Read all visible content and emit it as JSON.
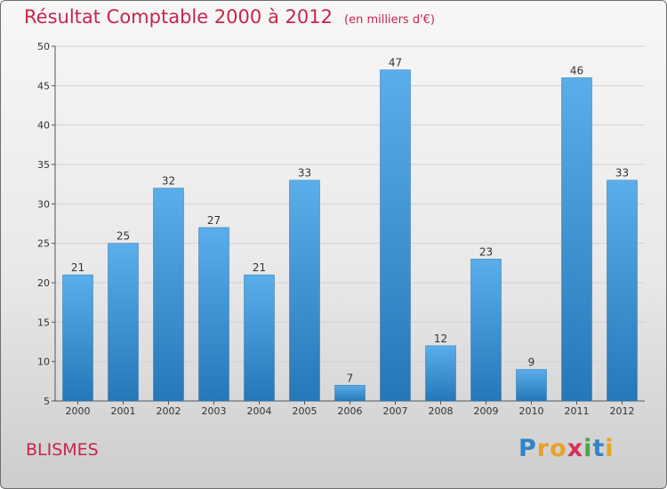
{
  "title": "Résultat Comptable 2000 à 2012",
  "subtitle": "(en milliers d'€)",
  "commune": "BLISMES",
  "logo": {
    "letters": [
      {
        "char": "P",
        "color": "#2e86c8"
      },
      {
        "char": "r",
        "color": "#e8a326"
      },
      {
        "char": "o",
        "color": "#e8a326"
      },
      {
        "char": "x",
        "color": "#d6305a"
      },
      {
        "char": "i",
        "color": "#4ba649"
      },
      {
        "char": "t",
        "color": "#2e86c8"
      },
      {
        "char": "i",
        "color": "#e8a326"
      }
    ]
  },
  "colors": {
    "bar_top": "#5aaeea",
    "bar_bottom": "#2677b8",
    "text_accent": "#c8254d",
    "grid": "#d2d2d2"
  },
  "chart_data": {
    "type": "bar",
    "title": "Résultat Comptable 2000 à 2012",
    "subtitle": "(en milliers d'€)",
    "xlabel": "",
    "ylabel": "",
    "categories": [
      "2000",
      "2001",
      "2002",
      "2003",
      "2004",
      "2005",
      "2006",
      "2007",
      "2008",
      "2009",
      "2010",
      "2011",
      "2012"
    ],
    "values": [
      21,
      25,
      32,
      27,
      21,
      33,
      7,
      47,
      12,
      23,
      9,
      46,
      33
    ],
    "ylim": [
      5,
      50
    ],
    "yticks": [
      5,
      10,
      15,
      20,
      25,
      30,
      35,
      40,
      45,
      50
    ],
    "grid": true,
    "legend": "none"
  }
}
